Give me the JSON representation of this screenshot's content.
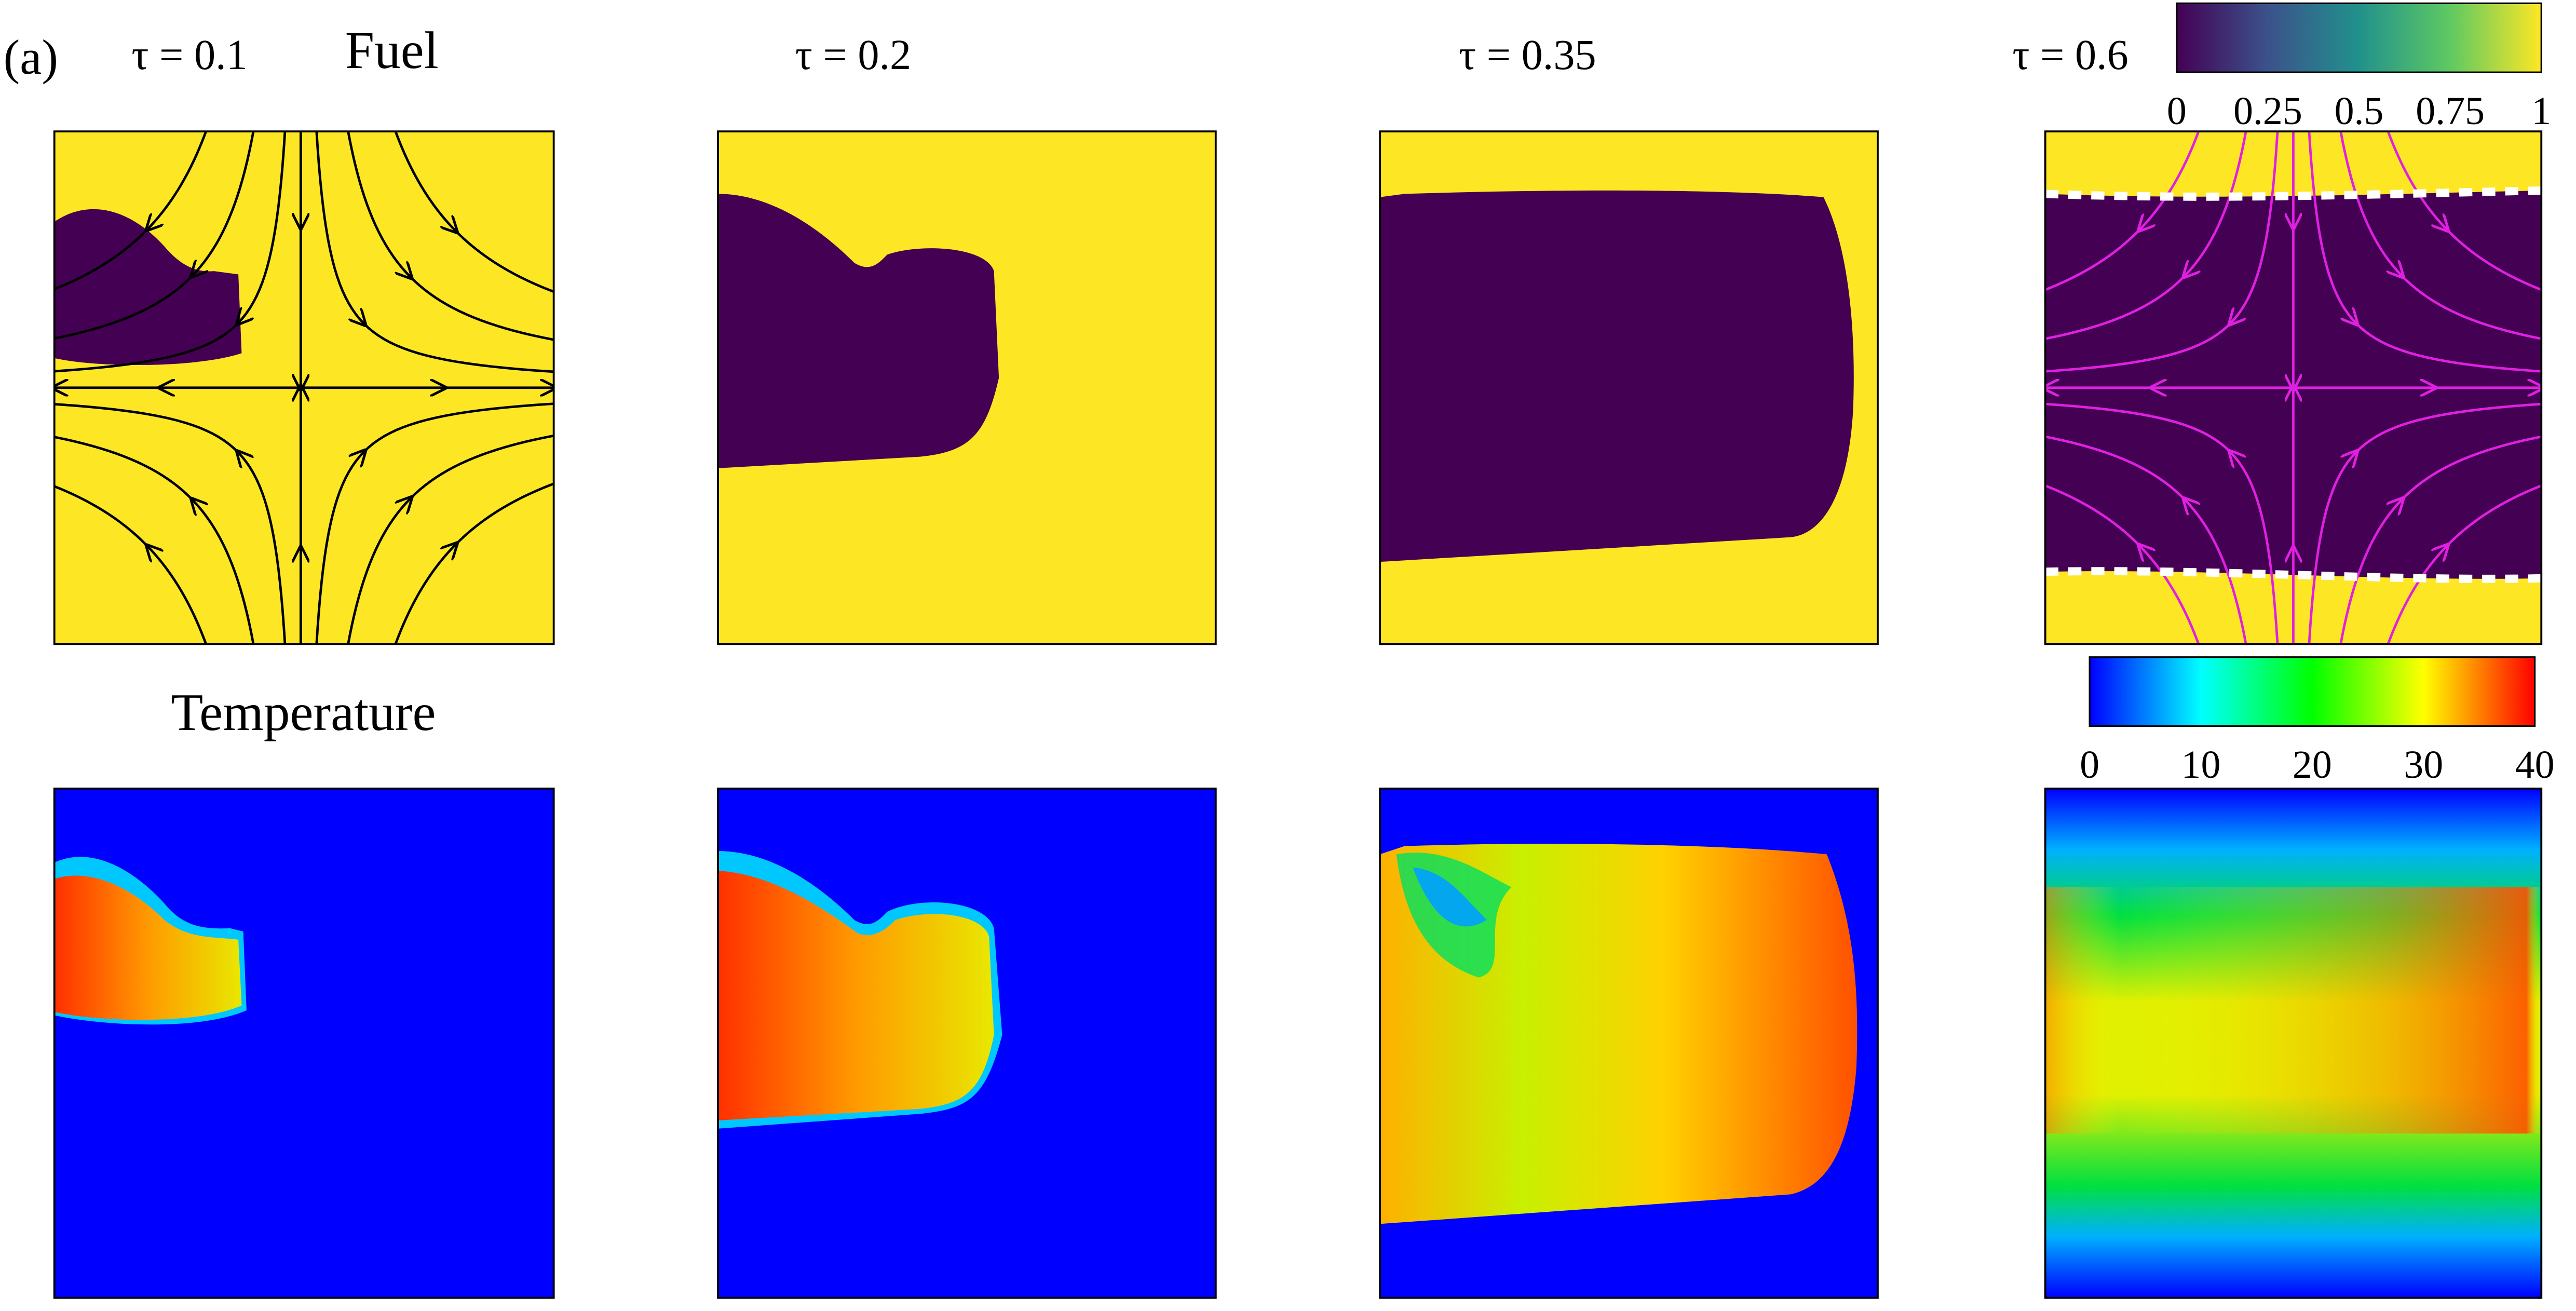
{
  "panel_label": "(a)",
  "row_titles": [
    "Fuel",
    "Temperature"
  ],
  "time_labels": [
    "τ = 0.1",
    "τ = 0.2",
    "τ = 0.35",
    "τ = 0.6"
  ],
  "colorbars": [
    {
      "lim": [
        0,
        1
      ],
      "ticks": [
        0,
        0.25,
        0.5,
        0.75,
        1
      ],
      "colormap": "viridis"
    },
    {
      "lim": [
        0,
        40
      ],
      "ticks": [
        0,
        10,
        20,
        30,
        40
      ],
      "colormap": "jet"
    }
  ]
}
